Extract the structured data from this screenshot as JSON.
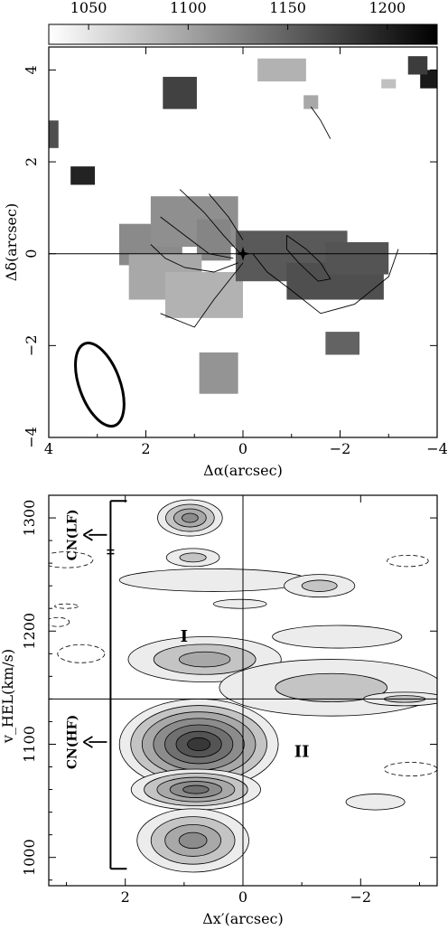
{
  "chart_data": [
    {
      "type": "heatmap",
      "colorbar": {
        "ticks": [
          "1050",
          "1100",
          "1150",
          "1200"
        ],
        "range": [
          1030,
          1225
        ]
      },
      "xlabel": "Δα(arcsec)",
      "ylabel": "Δδ(arcsec)",
      "x_ticks": [
        "4",
        "2",
        "0",
        "−2",
        "−4"
      ],
      "y_ticks": [
        "−4",
        "−2",
        "0",
        "2",
        "4"
      ],
      "xlim": [
        4,
        -4
      ],
      "ylim": [
        -4,
        4.5
      ],
      "beam": {
        "x": 2.95,
        "y": -2.85,
        "a": 0.42,
        "b": 0.95,
        "pa": -20
      },
      "marker": {
        "x": 0,
        "y": 0,
        "symbol": "star"
      },
      "cells": [
        {
          "x": 1.9,
          "y": 0.2,
          "w": 1.3,
          "h": 0.9,
          "v": 1110
        },
        {
          "x": 1.0,
          "y": 0.7,
          "w": 1.8,
          "h": 1.1,
          "v": 1105
        },
        {
          "x": 0.6,
          "y": 0.3,
          "w": 0.7,
          "h": 0.9,
          "v": 1115
        },
        {
          "x": 1.6,
          "y": -0.5,
          "w": 1.5,
          "h": 1.0,
          "v": 1080
        },
        {
          "x": 0.8,
          "y": -0.9,
          "w": 1.6,
          "h": 1.0,
          "v": 1070
        },
        {
          "x": 0.5,
          "y": -2.6,
          "w": 0.8,
          "h": 0.9,
          "v": 1100
        },
        {
          "x": -1.0,
          "y": -0.05,
          "w": 2.3,
          "h": 1.1,
          "v": 1160
        },
        {
          "x": -1.9,
          "y": -0.6,
          "w": 2.0,
          "h": 0.8,
          "v": 1170
        },
        {
          "x": -2.35,
          "y": -0.1,
          "w": 1.3,
          "h": 0.7,
          "v": 1165
        },
        {
          "x": -2.05,
          "y": -1.95,
          "w": 0.7,
          "h": 0.5,
          "v": 1150
        },
        {
          "x": -1.4,
          "y": 3.3,
          "w": 0.3,
          "h": 0.3,
          "v": 1080
        },
        {
          "x": 1.3,
          "y": 3.5,
          "w": 0.7,
          "h": 0.7,
          "v": 1185
        },
        {
          "x": 4.0,
          "y": 2.6,
          "w": 0.4,
          "h": 0.6,
          "v": 1170
        },
        {
          "x": 3.3,
          "y": 1.7,
          "w": 0.5,
          "h": 0.4,
          "v": 1215
        },
        {
          "x": -3.85,
          "y": 3.8,
          "w": 0.4,
          "h": 0.4,
          "v": 1225
        },
        {
          "x": -3.6,
          "y": 4.1,
          "w": 0.4,
          "h": 0.4,
          "v": 1190
        },
        {
          "x": -3.0,
          "y": 3.7,
          "w": 0.3,
          "h": 0.2,
          "v": 1055
        },
        {
          "x": -0.8,
          "y": 4.0,
          "w": 1.0,
          "h": 0.5,
          "v": 1070
        }
      ],
      "contours": [
        [
          [
            1.9,
            0.2
          ],
          [
            1.6,
            -0.1
          ],
          [
            1.2,
            -0.3
          ],
          [
            0.6,
            -0.4
          ],
          [
            0.1,
            -0.2
          ]
        ],
        [
          [
            1.7,
            0.8
          ],
          [
            1.2,
            0.4
          ],
          [
            0.7,
            0.0
          ],
          [
            0.2,
            -0.1
          ]
        ],
        [
          [
            1.3,
            1.4
          ],
          [
            0.8,
            0.9
          ],
          [
            0.4,
            0.4
          ],
          [
            0.05,
            0.0
          ]
        ],
        [
          [
            0.7,
            1.3
          ],
          [
            0.3,
            0.8
          ],
          [
            0.0,
            0.3
          ]
        ],
        [
          [
            1.7,
            -1.3
          ],
          [
            1.0,
            -1.6
          ],
          [
            0.6,
            -1.0
          ],
          [
            0.0,
            -0.2
          ]
        ],
        [
          [
            -0.2,
            0.0
          ],
          [
            -0.5,
            -0.4
          ],
          [
            -1.0,
            -0.8
          ],
          [
            -1.6,
            -1.3
          ],
          [
            -2.3,
            -1.1
          ],
          [
            -3.0,
            -0.5
          ],
          [
            -3.2,
            0.1
          ]
        ],
        [
          [
            -0.9,
            0.4
          ],
          [
            -1.3,
            0.1
          ],
          [
            -1.6,
            -0.2
          ],
          [
            -1.8,
            -0.55
          ],
          [
            -1.55,
            -0.6
          ],
          [
            -1.15,
            -0.2
          ],
          [
            -0.9,
            0.1
          ],
          [
            -0.9,
            0.4
          ]
        ],
        [
          [
            -1.4,
            3.2
          ],
          [
            -1.6,
            2.9
          ],
          [
            -1.8,
            2.5
          ]
        ]
      ]
    },
    {
      "type": "heatmap",
      "xlabel": "Δx′(arcsec)",
      "ylabel": "v_HEL(km/s)",
      "x_ticks": [
        "2",
        "0",
        "−2"
      ],
      "y_ticks": [
        "1000",
        "1100",
        "1200",
        "1300"
      ],
      "xlim": [
        3.3,
        -3.3
      ],
      "ylim": [
        975,
        1320
      ],
      "hline_y": 1140,
      "vline_x": 0,
      "regions": [
        {
          "text": "I",
          "x": 1.0,
          "y": 1195
        },
        {
          "text": "II",
          "x": -1.0,
          "y": 1093
        }
      ],
      "cn_labels": [
        {
          "text": "CN(LF)",
          "y": 1285
        },
        {
          "text": "CN(HF)",
          "y": 1102
        }
      ],
      "bracket": {
        "x": 2.25,
        "y_top": 1315,
        "y_bottom": 990,
        "tick_y": 1270
      },
      "blobs": [
        {
          "x": 0.9,
          "y": 1300,
          "rx": 0.55,
          "ry": 16,
          "peak": 4
        },
        {
          "x": 0.85,
          "y": 1265,
          "rx": 0.45,
          "ry": 8,
          "peak": 2
        },
        {
          "x": 0.5,
          "y": 1245,
          "rx": 1.6,
          "ry": 10,
          "peak": 1
        },
        {
          "x": 0.05,
          "y": 1224,
          "rx": 0.45,
          "ry": 4,
          "peak": 1
        },
        {
          "x": -1.3,
          "y": 1240,
          "rx": 0.6,
          "ry": 10,
          "peak": 2
        },
        {
          "x": 0.65,
          "y": 1175,
          "rx": 1.3,
          "ry": 20,
          "peak": 3
        },
        {
          "x": 0.75,
          "y": 1100,
          "rx": 1.35,
          "ry": 40,
          "peak": 7
        },
        {
          "x": 0.8,
          "y": 1060,
          "rx": 1.1,
          "ry": 18,
          "peak": 5
        },
        {
          "x": 0.85,
          "y": 1015,
          "rx": 0.95,
          "ry": 28,
          "peak": 4
        },
        {
          "x": -1.5,
          "y": 1150,
          "rx": 1.9,
          "ry": 25,
          "peak": 2
        },
        {
          "x": -2.75,
          "y": 1140,
          "rx": 0.7,
          "ry": 6,
          "peak": 2
        },
        {
          "x": -1.6,
          "y": 1195,
          "rx": 1.1,
          "ry": 10,
          "peak": 1
        },
        {
          "x": -2.25,
          "y": 1049,
          "rx": 0.5,
          "ry": 7,
          "peak": 1
        }
      ],
      "negative_contours": [
        {
          "x": 3.0,
          "y": 1263,
          "rx": 0.45,
          "ry": 7
        },
        {
          "x": 3.0,
          "y": 1222,
          "rx": 0.2,
          "ry": 2
        },
        {
          "x": 3.15,
          "y": 1208,
          "rx": 0.2,
          "ry": 4
        },
        {
          "x": 2.75,
          "y": 1180,
          "rx": 0.4,
          "ry": 8
        },
        {
          "x": -2.8,
          "y": 1262,
          "rx": 0.35,
          "ry": 5
        },
        {
          "x": -2.85,
          "y": 1078,
          "rx": 0.45,
          "ry": 6
        }
      ]
    }
  ]
}
